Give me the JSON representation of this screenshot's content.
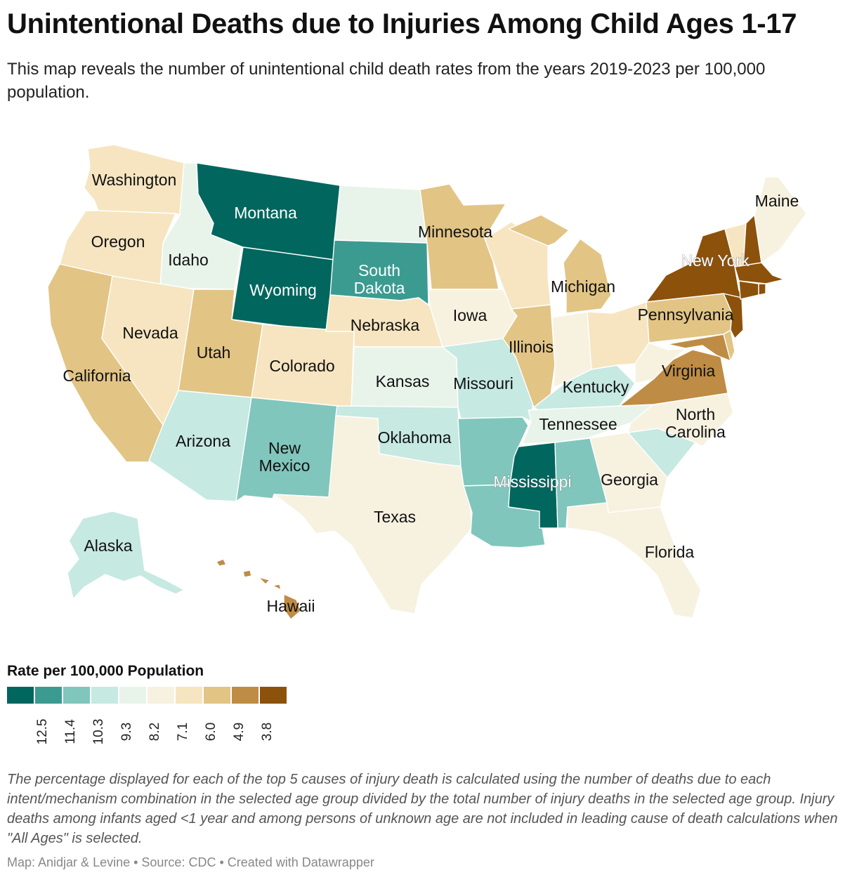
{
  "title": "Unintentional Deaths due to Injuries Among Child Ages 1-17",
  "subtitle": "This map reveals the number of unintentional child death rates from the years 2019-2023 per 100,000 population.",
  "legend": {
    "title": "Rate per 100,000 Population",
    "colors": [
      "#01665e",
      "#3b9b91",
      "#80c6bc",
      "#c6e9e2",
      "#e8f4ea",
      "#f7f1e0",
      "#f6e5c0",
      "#e2c485",
      "#bf8c45",
      "#8c510a"
    ],
    "ticks": [
      "12.5",
      "11.4",
      "10.3",
      "9.3",
      "8.2",
      "7.1",
      "6.0",
      "4.9",
      "3.8"
    ]
  },
  "states": {
    "WA": {
      "label": "Washington",
      "bin": 6
    },
    "OR": {
      "label": "Oregon",
      "bin": 6
    },
    "CA": {
      "label": "California",
      "bin": 7
    },
    "ID": {
      "label": "Idaho",
      "bin": 4
    },
    "NV": {
      "label": "Nevada",
      "bin": 6
    },
    "MT": {
      "label": "Montana",
      "bin": 0
    },
    "WY": {
      "label": "Wyoming",
      "bin": 0
    },
    "UT": {
      "label": "Utah",
      "bin": 7
    },
    "AZ": {
      "label": "Arizona",
      "bin": 3
    },
    "CO": {
      "label": "Colorado",
      "bin": 6
    },
    "NM": {
      "label": "New Mexico",
      "bin": 2
    },
    "ND": {
      "label": "",
      "bin": 4
    },
    "SD": {
      "label": "South Dakota",
      "bin": 1
    },
    "NE": {
      "label": "Nebraska",
      "bin": 6
    },
    "KS": {
      "label": "Kansas",
      "bin": 4
    },
    "OK": {
      "label": "Oklahoma",
      "bin": 3
    },
    "TX": {
      "label": "Texas",
      "bin": 5
    },
    "MN": {
      "label": "Minnesota",
      "bin": 7
    },
    "IA": {
      "label": "Iowa",
      "bin": 5
    },
    "MO": {
      "label": "Missouri",
      "bin": 3
    },
    "AR": {
      "label": "",
      "bin": 2
    },
    "LA": {
      "label": "",
      "bin": 2
    },
    "WI": {
      "label": "",
      "bin": 6
    },
    "IL": {
      "label": "Illinois",
      "bin": 7
    },
    "MS": {
      "label": "Mississippi",
      "bin": 0
    },
    "MI": {
      "label": "Michigan",
      "bin": 7
    },
    "IN": {
      "label": "",
      "bin": 5
    },
    "KY": {
      "label": "Kentucky",
      "bin": 3
    },
    "TN": {
      "label": "Tennessee",
      "bin": 4
    },
    "AL": {
      "label": "",
      "bin": 2
    },
    "OH": {
      "label": "",
      "bin": 6
    },
    "GA": {
      "label": "Georgia",
      "bin": 5
    },
    "FL": {
      "label": "Florida",
      "bin": 5
    },
    "SC": {
      "label": "",
      "bin": 3
    },
    "NC": {
      "label": "North Carolina",
      "bin": 5
    },
    "VA": {
      "label": "Virginia",
      "bin": 8
    },
    "WV": {
      "label": "",
      "bin": 5
    },
    "PA": {
      "label": "Pennsylvania",
      "bin": 7
    },
    "NY": {
      "label": "New York",
      "bin": 9
    },
    "VT": {
      "label": "",
      "bin": 6
    },
    "NH": {
      "label": "",
      "bin": 9
    },
    "ME": {
      "label": "Maine",
      "bin": 5
    },
    "MA": {
      "label": "",
      "bin": 9
    },
    "CT": {
      "label": "",
      "bin": 9
    },
    "RI": {
      "label": "",
      "bin": 9
    },
    "NJ": {
      "label": "",
      "bin": 9
    },
    "DE": {
      "label": "",
      "bin": 7
    },
    "MD": {
      "label": "",
      "bin": 8
    },
    "AK": {
      "label": "Alaska",
      "bin": 3
    },
    "HI": {
      "label": "Hawaii",
      "bin": 8
    }
  },
  "note": "The percentage displayed for each of the top 5 causes of injury death is calculated using the number of deaths due to each intent/mechanism combination in the selected age group divided by the total number of injury deaths in the selected age group. Injury deaths among infants aged <1 year and among persons of unknown age are not included in leading cause of death calculations when \"All Ages\" is selected.",
  "footer": "Map: Anidjar & Levine  • Source: CDC • Created with Datawrapper"
}
